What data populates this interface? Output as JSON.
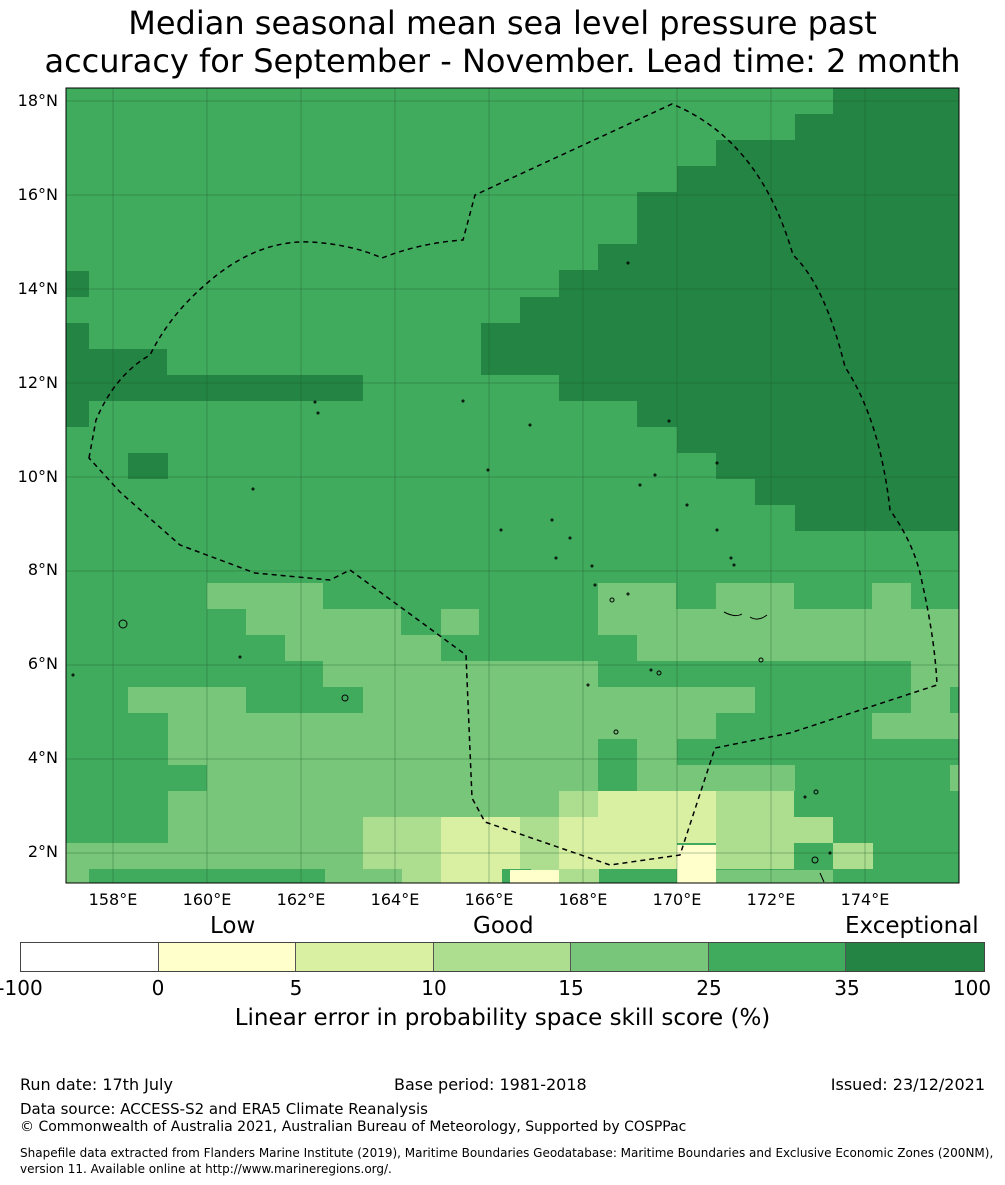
{
  "title": {
    "line1": "Median seasonal mean sea level pressure past",
    "line2": "accuracy for September - November. Lead time: 2 month"
  },
  "map": {
    "lat_range": [
      1.4,
      18.3
    ],
    "lon_range": [
      157.0,
      176.0
    ],
    "lat_labels": [
      "18°N",
      "16°N",
      "14°N",
      "12°N",
      "10°N",
      "8°N",
      "6°N",
      "4°N",
      "2°N"
    ],
    "lon_labels": [
      "158°E",
      "160°E",
      "162°E",
      "164°E",
      "166°E",
      "168°E",
      "170°E",
      "172°E",
      "174°E"
    ],
    "grid_lines": true,
    "boundary_style": "dashed EEZ boundary",
    "category_colors": {
      "c0": "#ffffcc",
      "c1": "#d9f0a3",
      "c2": "#addd8e",
      "c3": "#78c679",
      "c4": "#41ab5d",
      "c5": "#238443"
    },
    "base_category": "c4"
  },
  "legend": {
    "categories": [
      "Low",
      "Good",
      "Exceptional"
    ],
    "ticks": [
      "-100",
      "0",
      "5",
      "10",
      "15",
      "25",
      "35",
      "100"
    ],
    "colors": [
      "#ffffff",
      "#ffffcc",
      "#d9f0a3",
      "#addd8e",
      "#78c679",
      "#41ab5d",
      "#238443"
    ],
    "label": "Linear error in probability space skill score (%)"
  },
  "footer": {
    "run_date": "Run date: 17th July",
    "base_period": "Base period: 1981-2018",
    "issued": "Issued: 23/12/2021",
    "data_source": "Data source: ACCESS-S2 and ERA5 Climate Reanalysis",
    "copyright": "© Commonwealth of Australia 2021, Australian Bureau of Meteorology, Supported by COSPPac",
    "shapefile_line1": "Shapefile data extracted from Flanders Marine Institute (2019), Maritime Boundaries Geodatabase: Maritime Boundaries and Exclusive Economic Zones (200NM),",
    "shapefile_line2": "version 11. Available online at http://www.marineregions.org/."
  }
}
